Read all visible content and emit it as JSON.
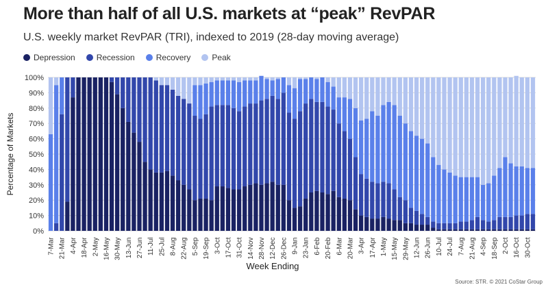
{
  "header": {
    "title": "More than half of all U.S. markets at “peak” RevPAR",
    "subtitle": "U.S. weekly market RevPAR (TRI), indexed to 2019 (28-day moving average)"
  },
  "source": "Source: STR. © 2021 CoStar Group",
  "chart_data": {
    "type": "bar",
    "stacked": true,
    "xlabel": "Week Ending",
    "ylabel": "Percentage of Markets",
    "ylim": [
      0,
      100
    ],
    "yticks": [
      "0%",
      "10%",
      "20%",
      "30%",
      "40%",
      "50%",
      "60%",
      "70%",
      "80%",
      "90%",
      "100%"
    ],
    "grid": true,
    "legend": "top-left",
    "categories": [
      "7-Mar",
      "14-Mar",
      "21-Mar",
      "28-Mar",
      "4-Apr",
      "11-Apr",
      "18-Apr",
      "25-Apr",
      "2-May",
      "9-May",
      "16-May",
      "23-May",
      "30-May",
      "6-Jun",
      "13-Jun",
      "20-Jun",
      "27-Jun",
      "4-Jul",
      "11-Jul",
      "18-Jul",
      "25-Jul",
      "1-Aug",
      "8-Aug",
      "15-Aug",
      "22-Aug",
      "29-Aug",
      "5-Sep",
      "12-Sep",
      "19-Sep",
      "26-Sep",
      "3-Oct",
      "10-Oct",
      "17-Oct",
      "24-Oct",
      "31-Oct",
      "7-Nov",
      "14-Nov",
      "21-Nov",
      "28-Nov",
      "5-Dec",
      "12-Dec",
      "19-Dec",
      "26-Dec",
      "2-Jan",
      "9-Jan",
      "16-Jan",
      "23-Jan",
      "30-Jan",
      "6-Feb",
      "13-Feb",
      "20-Feb",
      "27-Feb",
      "6-Mar",
      "13-Mar",
      "20-Mar",
      "27-Mar",
      "3-Apr",
      "10-Apr",
      "17-Apr",
      "24-Apr",
      "1-May",
      "8-May",
      "15-May",
      "22-May",
      "29-May",
      "5-Jun",
      "12-Jun",
      "19-Jun",
      "26-Jun",
      "3-Jul",
      "10-Jul",
      "17-Jul",
      "24-Jul",
      "31-Jul",
      "7-Aug",
      "14-Aug",
      "21-Aug",
      "28-Aug",
      "4-Sep",
      "11-Sep",
      "18-Sep",
      "25-Sep",
      "2-Oct",
      "9-Oct",
      "16-Oct",
      "23-Oct",
      "30-Oct",
      "6-Nov"
    ],
    "x_tick_labels": [
      "7-Mar",
      "21-Mar",
      "4-Apr",
      "18-Apr",
      "2-May",
      "16-May",
      "30-May",
      "13-Jun",
      "27-Jun",
      "11-Jul",
      "25-Jul",
      "8-Aug",
      "22-Aug",
      "5-Sep",
      "19-Sep",
      "3-Oct",
      "17-Oct",
      "31-Oct",
      "14-Nov",
      "28-Nov",
      "12-Dec",
      "26-Dec",
      "9-Jan",
      "23-Jan",
      "6-Feb",
      "20-Feb",
      "6-Mar",
      "20-Mar",
      "3-Apr",
      "17-Apr",
      "1-May",
      "15-May",
      "29-May",
      "12-Jun",
      "26-Jun",
      "10-Jul",
      "24-Jul",
      "7-Aug",
      "21-Aug",
      "4-Sep",
      "18-Sep",
      "2-Oct",
      "16-Oct",
      "30-Oct"
    ],
    "series": [
      {
        "name": "Depression",
        "color": "#1a2263",
        "values": [
          0,
          0,
          0,
          19,
          87,
          100,
          100,
          100,
          100,
          100,
          100,
          97,
          89,
          80,
          71,
          64,
          58,
          45,
          40,
          38,
          38,
          39,
          36,
          33,
          30,
          27,
          20,
          21,
          21,
          20,
          29,
          29,
          28,
          27,
          27,
          29,
          30,
          31,
          30,
          31,
          32,
          30,
          30,
          20,
          15,
          16,
          21,
          25,
          26,
          25,
          24,
          26,
          22,
          21,
          20,
          14,
          10,
          9,
          8,
          8,
          9,
          8,
          7,
          7,
          5,
          5,
          4,
          4,
          4,
          2,
          1,
          1,
          1,
          1,
          1,
          1,
          1,
          1,
          1,
          1,
          1,
          1,
          1,
          1,
          1,
          1,
          1,
          1
        ]
      },
      {
        "name": "Recession",
        "color": "#3247ab",
        "values": [
          0,
          5,
          76,
          81,
          13,
          0,
          0,
          0,
          0,
          0,
          0,
          3,
          11,
          20,
          29,
          36,
          42,
          55,
          60,
          60,
          57,
          56,
          56,
          55,
          56,
          56,
          55,
          52,
          55,
          61,
          53,
          53,
          54,
          53,
          51,
          52,
          53,
          52,
          55,
          55,
          56,
          56,
          60,
          57,
          58,
          62,
          62,
          61,
          58,
          59,
          57,
          53,
          48,
          44,
          40,
          34,
          27,
          25,
          24,
          23,
          23,
          23,
          20,
          15,
          15,
          10,
          9,
          7,
          5,
          4,
          4,
          4,
          4,
          4,
          5,
          5,
          6,
          8,
          6,
          5,
          6,
          8,
          8,
          8,
          9,
          9,
          10,
          10
        ]
      },
      {
        "name": "Recovery",
        "color": "#5a80ea",
        "values": [
          63,
          90,
          24,
          0,
          0,
          0,
          0,
          0,
          0,
          0,
          0,
          0,
          0,
          0,
          0,
          0,
          0,
          0,
          0,
          0,
          0,
          0,
          0,
          0,
          0,
          0,
          20,
          22,
          20,
          16,
          16,
          16,
          16,
          18,
          19,
          17,
          15,
          15,
          16,
          13,
          10,
          13,
          10,
          18,
          20,
          21,
          16,
          14,
          15,
          16,
          16,
          15,
          17,
          22,
          26,
          32,
          35,
          39,
          46,
          44,
          50,
          53,
          55,
          53,
          50,
          50,
          49,
          49,
          48,
          42,
          38,
          35,
          33,
          31,
          29,
          29,
          28,
          26,
          23,
          25,
          29,
          32,
          39,
          35,
          32,
          32,
          30,
          30
        ]
      },
      {
        "name": "Peak",
        "color": "#b2c4f0",
        "values": [
          37,
          5,
          0,
          0,
          0,
          0,
          0,
          0,
          0,
          0,
          0,
          0,
          0,
          0,
          0,
          0,
          0,
          0,
          0,
          2,
          5,
          5,
          8,
          12,
          14,
          17,
          5,
          5,
          4,
          3,
          2,
          2,
          2,
          2,
          3,
          2,
          2,
          2,
          0,
          1,
          2,
          1,
          0,
          5,
          7,
          1,
          1,
          0,
          1,
          0,
          3,
          6,
          13,
          13,
          14,
          20,
          28,
          27,
          22,
          25,
          18,
          16,
          18,
          25,
          30,
          35,
          38,
          40,
          43,
          52,
          57,
          60,
          62,
          64,
          65,
          65,
          65,
          65,
          70,
          69,
          64,
          59,
          52,
          56,
          59,
          58,
          59,
          59
        ]
      }
    ]
  }
}
